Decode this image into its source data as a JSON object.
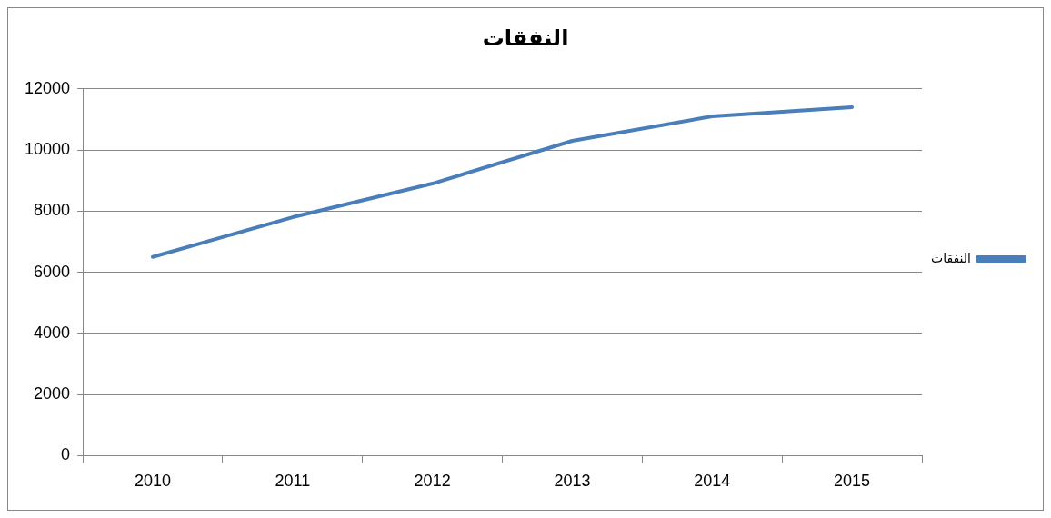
{
  "chart_data": {
    "type": "line",
    "title": "النفقات",
    "categories": [
      "2010",
      "2011",
      "2012",
      "2013",
      "2014",
      "2015"
    ],
    "series": [
      {
        "name": "النفقات",
        "color": "#4a7ebb",
        "values": [
          6500,
          7800,
          8900,
          10300,
          11100,
          11400
        ]
      }
    ],
    "ylim": [
      0,
      12000
    ],
    "yticks": [
      0,
      2000,
      4000,
      6000,
      8000,
      10000,
      12000
    ],
    "grid": "y",
    "legend": "right",
    "marker": "none",
    "line_style": "solid"
  }
}
